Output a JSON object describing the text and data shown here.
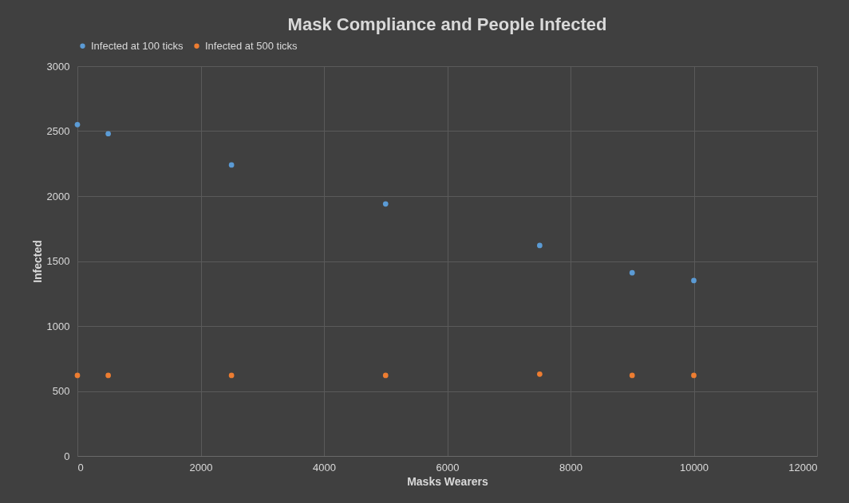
{
  "chart_data": {
    "type": "scatter",
    "title": "Mask Compliance and People Infected",
    "xlabel": "Masks Wearers",
    "ylabel": "Infected",
    "x": [
      0,
      500,
      2500,
      5000,
      7500,
      9000,
      10000
    ],
    "series": [
      {
        "name": "Infected at 100 ticks",
        "color": "#5b9bd5",
        "values": [
          2550,
          2480,
          2240,
          1940,
          1620,
          1410,
          1350
        ]
      },
      {
        "name": "Infected at 500 ticks",
        "color": "#ed7d31",
        "values": [
          620,
          620,
          620,
          620,
          630,
          620,
          620
        ]
      }
    ],
    "xlim": [
      0,
      12000
    ],
    "xticks": [
      0,
      2000,
      4000,
      6000,
      8000,
      10000,
      12000
    ],
    "ylim": [
      0,
      3000
    ],
    "yticks": [
      0,
      500,
      1000,
      1500,
      2000,
      2500,
      3000
    ],
    "grid": true,
    "legend": "top",
    "marker": "circle"
  }
}
